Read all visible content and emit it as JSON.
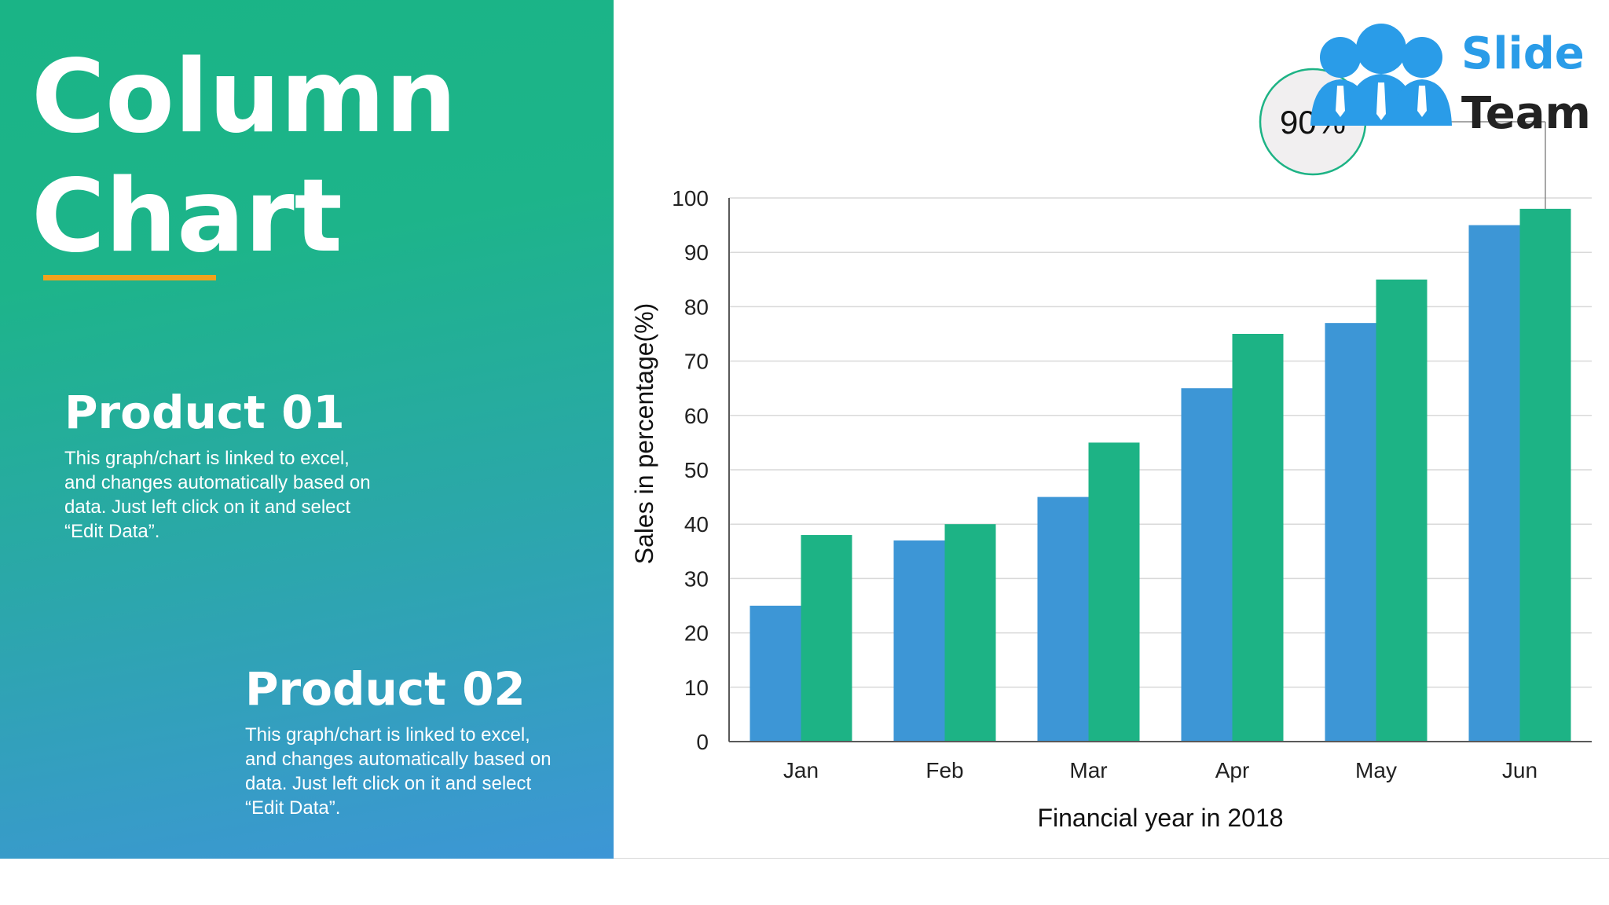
{
  "slide": {
    "title": "Column\nChart",
    "products": [
      {
        "heading": "Product 01",
        "description": "This graph/chart is linked to excel, and changes automatically based on data. Just left click on it and select “Edit Data”."
      },
      {
        "heading": "Product 02",
        "description": "This graph/chart is linked to excel, and changes automatically based on data. Just left click on it and select “Edit Data”."
      }
    ]
  },
  "logo": {
    "line1": "Slide",
    "line2": "Team"
  },
  "callout": {
    "text": "90%"
  },
  "colors": {
    "product_01": "#3d96d6",
    "product_02": "#1db385",
    "accent": "#f0a21d",
    "logo_blue": "#2a9ce8"
  },
  "chart_data": {
    "type": "bar",
    "title": "",
    "xlabel": "Financial year in 2018",
    "ylabel": "Sales in percentage(%)",
    "categories": [
      "Jan",
      "Feb",
      "Mar",
      "Apr",
      "May",
      "Jun"
    ],
    "series": [
      {
        "values": [
          25,
          37,
          45,
          65,
          77,
          95
        ]
      },
      {
        "values": [
          38,
          40,
          55,
          75,
          85,
          98
        ]
      }
    ],
    "ylim": [
      0,
      100
    ],
    "yticks": [
      0,
      10,
      20,
      30,
      40,
      50,
      60,
      70,
      80,
      90,
      100
    ],
    "grid": true,
    "legend": "none"
  }
}
